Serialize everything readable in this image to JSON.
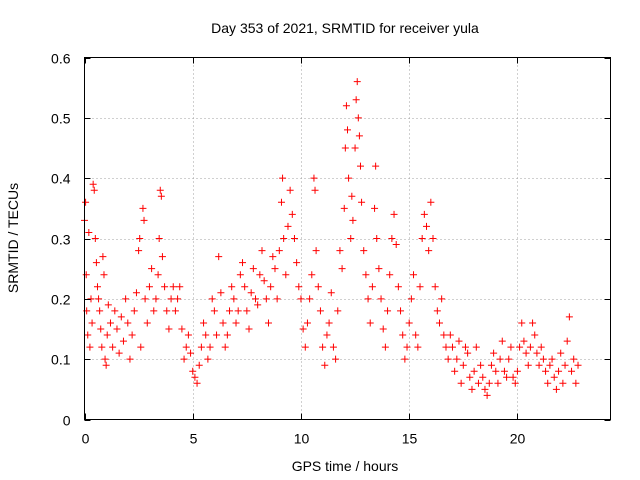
{
  "chart_data": {
    "type": "scatter",
    "title": "Day 353 of 2021, SRMTID for receiver yula",
    "xlabel": "GPS time / hours",
    "ylabel": "SRMTID / TECUs",
    "xlim": [
      0,
      24.3
    ],
    "ylim": [
      0,
      0.6
    ],
    "x_ticks": [
      0,
      5,
      10,
      15,
      20
    ],
    "x_tick_labels": [
      "0",
      "5",
      "10",
      "15",
      "20"
    ],
    "y_ticks": [
      0,
      0.1,
      0.2,
      0.3,
      0.4,
      0.5,
      0.6
    ],
    "y_tick_labels": [
      "0",
      "0.1",
      "0.2",
      "0.3",
      "0.4",
      "0.5",
      "0.6"
    ],
    "grid": true,
    "marker": "+",
    "color": "#ff0000",
    "series": [
      {
        "name": "SRMTID",
        "points": [
          [
            0.0,
            0.33
          ],
          [
            0.05,
            0.36
          ],
          [
            0.08,
            0.24
          ],
          [
            0.1,
            0.18
          ],
          [
            0.15,
            0.14
          ],
          [
            0.2,
            0.31
          ],
          [
            0.25,
            0.12
          ],
          [
            0.3,
            0.2
          ],
          [
            0.35,
            0.16
          ],
          [
            0.4,
            0.39
          ],
          [
            0.45,
            0.38
          ],
          [
            0.5,
            0.3
          ],
          [
            0.55,
            0.26
          ],
          [
            0.6,
            0.22
          ],
          [
            0.65,
            0.2
          ],
          [
            0.7,
            0.18
          ],
          [
            0.75,
            0.15
          ],
          [
            0.8,
            0.12
          ],
          [
            0.85,
            0.27
          ],
          [
            0.9,
            0.24
          ],
          [
            0.95,
            0.1
          ],
          [
            1.0,
            0.09
          ],
          [
            1.05,
            0.14
          ],
          [
            1.1,
            0.19
          ],
          [
            1.2,
            0.16
          ],
          [
            1.3,
            0.12
          ],
          [
            1.4,
            0.18
          ],
          [
            1.5,
            0.15
          ],
          [
            1.6,
            0.11
          ],
          [
            1.7,
            0.17
          ],
          [
            1.8,
            0.13
          ],
          [
            1.9,
            0.2
          ],
          [
            2.0,
            0.16
          ],
          [
            2.1,
            0.1
          ],
          [
            2.2,
            0.14
          ],
          [
            2.3,
            0.18
          ],
          [
            2.4,
            0.21
          ],
          [
            2.5,
            0.28
          ],
          [
            2.55,
            0.3
          ],
          [
            2.6,
            0.12
          ],
          [
            2.7,
            0.35
          ],
          [
            2.75,
            0.33
          ],
          [
            2.8,
            0.2
          ],
          [
            2.9,
            0.16
          ],
          [
            3.0,
            0.22
          ],
          [
            3.1,
            0.25
          ],
          [
            3.2,
            0.18
          ],
          [
            3.3,
            0.2
          ],
          [
            3.4,
            0.24
          ],
          [
            3.45,
            0.3
          ],
          [
            3.5,
            0.38
          ],
          [
            3.55,
            0.37
          ],
          [
            3.6,
            0.27
          ],
          [
            3.7,
            0.22
          ],
          [
            3.8,
            0.18
          ],
          [
            3.9,
            0.15
          ],
          [
            4.0,
            0.2
          ],
          [
            4.1,
            0.22
          ],
          [
            4.2,
            0.18
          ],
          [
            4.3,
            0.2
          ],
          [
            4.4,
            0.22
          ],
          [
            4.5,
            0.15
          ],
          [
            4.6,
            0.1
          ],
          [
            4.7,
            0.12
          ],
          [
            4.8,
            0.14
          ],
          [
            4.9,
            0.11
          ],
          [
            5.0,
            0.08
          ],
          [
            5.1,
            0.07
          ],
          [
            5.2,
            0.06
          ],
          [
            5.3,
            0.09
          ],
          [
            5.4,
            0.12
          ],
          [
            5.5,
            0.16
          ],
          [
            5.6,
            0.14
          ],
          [
            5.7,
            0.1
          ],
          [
            5.8,
            0.12
          ],
          [
            5.9,
            0.2
          ],
          [
            6.0,
            0.18
          ],
          [
            6.1,
            0.14
          ],
          [
            6.2,
            0.27
          ],
          [
            6.3,
            0.21
          ],
          [
            6.4,
            0.16
          ],
          [
            6.5,
            0.12
          ],
          [
            6.6,
            0.14
          ],
          [
            6.7,
            0.18
          ],
          [
            6.8,
            0.22
          ],
          [
            6.9,
            0.2
          ],
          [
            7.0,
            0.16
          ],
          [
            7.1,
            0.18
          ],
          [
            7.2,
            0.24
          ],
          [
            7.3,
            0.26
          ],
          [
            7.4,
            0.22
          ],
          [
            7.5,
            0.18
          ],
          [
            7.6,
            0.15
          ],
          [
            7.7,
            0.21
          ],
          [
            7.8,
            0.25
          ],
          [
            7.9,
            0.2
          ],
          [
            8.0,
            0.19
          ],
          [
            8.1,
            0.24
          ],
          [
            8.2,
            0.28
          ],
          [
            8.3,
            0.23
          ],
          [
            8.4,
            0.2
          ],
          [
            8.5,
            0.16
          ],
          [
            8.6,
            0.22
          ],
          [
            8.7,
            0.27
          ],
          [
            8.8,
            0.25
          ],
          [
            8.9,
            0.2
          ],
          [
            9.0,
            0.28
          ],
          [
            9.1,
            0.36
          ],
          [
            9.15,
            0.4
          ],
          [
            9.2,
            0.3
          ],
          [
            9.3,
            0.24
          ],
          [
            9.4,
            0.32
          ],
          [
            9.5,
            0.38
          ],
          [
            9.6,
            0.34
          ],
          [
            9.7,
            0.3
          ],
          [
            9.8,
            0.26
          ],
          [
            9.9,
            0.22
          ],
          [
            10.0,
            0.2
          ],
          [
            10.1,
            0.15
          ],
          [
            10.2,
            0.12
          ],
          [
            10.3,
            0.16
          ],
          [
            10.4,
            0.2
          ],
          [
            10.5,
            0.24
          ],
          [
            10.6,
            0.4
          ],
          [
            10.65,
            0.38
          ],
          [
            10.7,
            0.28
          ],
          [
            10.8,
            0.22
          ],
          [
            10.9,
            0.18
          ],
          [
            11.0,
            0.12
          ],
          [
            11.1,
            0.09
          ],
          [
            11.2,
            0.14
          ],
          [
            11.3,
            0.16
          ],
          [
            11.4,
            0.21
          ],
          [
            11.5,
            0.12
          ],
          [
            11.6,
            0.1
          ],
          [
            11.7,
            0.18
          ],
          [
            11.8,
            0.28
          ],
          [
            11.9,
            0.25
          ],
          [
            12.0,
            0.35
          ],
          [
            12.05,
            0.45
          ],
          [
            12.1,
            0.52
          ],
          [
            12.15,
            0.48
          ],
          [
            12.2,
            0.4
          ],
          [
            12.3,
            0.3
          ],
          [
            12.35,
            0.37
          ],
          [
            12.4,
            0.33
          ],
          [
            12.5,
            0.45
          ],
          [
            12.55,
            0.53
          ],
          [
            12.6,
            0.56
          ],
          [
            12.65,
            0.5
          ],
          [
            12.7,
            0.47
          ],
          [
            12.75,
            0.42
          ],
          [
            12.8,
            0.36
          ],
          [
            12.9,
            0.28
          ],
          [
            13.0,
            0.24
          ],
          [
            13.1,
            0.2
          ],
          [
            13.2,
            0.16
          ],
          [
            13.3,
            0.22
          ],
          [
            13.4,
            0.35
          ],
          [
            13.45,
            0.42
          ],
          [
            13.5,
            0.3
          ],
          [
            13.6,
            0.25
          ],
          [
            13.7,
            0.2
          ],
          [
            13.8,
            0.15
          ],
          [
            13.9,
            0.12
          ],
          [
            14.0,
            0.18
          ],
          [
            14.1,
            0.24
          ],
          [
            14.2,
            0.3
          ],
          [
            14.3,
            0.34
          ],
          [
            14.4,
            0.29
          ],
          [
            14.5,
            0.22
          ],
          [
            14.6,
            0.18
          ],
          [
            14.7,
            0.14
          ],
          [
            14.8,
            0.1
          ],
          [
            14.9,
            0.12
          ],
          [
            15.0,
            0.16
          ],
          [
            15.1,
            0.2
          ],
          [
            15.2,
            0.24
          ],
          [
            15.3,
            0.14
          ],
          [
            15.4,
            0.12
          ],
          [
            15.5,
            0.22
          ],
          [
            15.6,
            0.3
          ],
          [
            15.7,
            0.34
          ],
          [
            15.8,
            0.32
          ],
          [
            15.9,
            0.28
          ],
          [
            16.0,
            0.36
          ],
          [
            16.1,
            0.3
          ],
          [
            16.2,
            0.22
          ],
          [
            16.3,
            0.18
          ],
          [
            16.4,
            0.16
          ],
          [
            16.5,
            0.2
          ],
          [
            16.6,
            0.14
          ],
          [
            16.7,
            0.12
          ],
          [
            16.8,
            0.1
          ],
          [
            16.9,
            0.14
          ],
          [
            17.0,
            0.12
          ],
          [
            17.1,
            0.08
          ],
          [
            17.2,
            0.1
          ],
          [
            17.3,
            0.13
          ],
          [
            17.4,
            0.06
          ],
          [
            17.5,
            0.09
          ],
          [
            17.6,
            0.12
          ],
          [
            17.7,
            0.11
          ],
          [
            17.8,
            0.07
          ],
          [
            17.9,
            0.05
          ],
          [
            18.0,
            0.08
          ],
          [
            18.1,
            0.12
          ],
          [
            18.2,
            0.06
          ],
          [
            18.3,
            0.09
          ],
          [
            18.4,
            0.07
          ],
          [
            18.5,
            0.05
          ],
          [
            18.6,
            0.04
          ],
          [
            18.7,
            0.06
          ],
          [
            18.8,
            0.09
          ],
          [
            18.9,
            0.11
          ],
          [
            19.0,
            0.08
          ],
          [
            19.1,
            0.06
          ],
          [
            19.2,
            0.1
          ],
          [
            19.3,
            0.13
          ],
          [
            19.4,
            0.08
          ],
          [
            19.5,
            0.07
          ],
          [
            19.6,
            0.1
          ],
          [
            19.7,
            0.12
          ],
          [
            19.8,
            0.07
          ],
          [
            19.9,
            0.06
          ],
          [
            20.0,
            0.08
          ],
          [
            20.1,
            0.12
          ],
          [
            20.2,
            0.16
          ],
          [
            20.3,
            0.13
          ],
          [
            20.4,
            0.11
          ],
          [
            20.5,
            0.09
          ],
          [
            20.6,
            0.12
          ],
          [
            20.7,
            0.16
          ],
          [
            20.8,
            0.14
          ],
          [
            20.9,
            0.11
          ],
          [
            21.0,
            0.09
          ],
          [
            21.1,
            0.12
          ],
          [
            21.2,
            0.1
          ],
          [
            21.3,
            0.08
          ],
          [
            21.4,
            0.06
          ],
          [
            21.5,
            0.09
          ],
          [
            21.6,
            0.1
          ],
          [
            21.7,
            0.07
          ],
          [
            21.8,
            0.05
          ],
          [
            21.9,
            0.08
          ],
          [
            22.0,
            0.11
          ],
          [
            22.1,
            0.06
          ],
          [
            22.2,
            0.09
          ],
          [
            22.3,
            0.13
          ],
          [
            22.4,
            0.17
          ],
          [
            22.5,
            0.08
          ],
          [
            22.6,
            0.1
          ],
          [
            22.7,
            0.06
          ],
          [
            22.8,
            0.09
          ]
        ]
      }
    ]
  }
}
